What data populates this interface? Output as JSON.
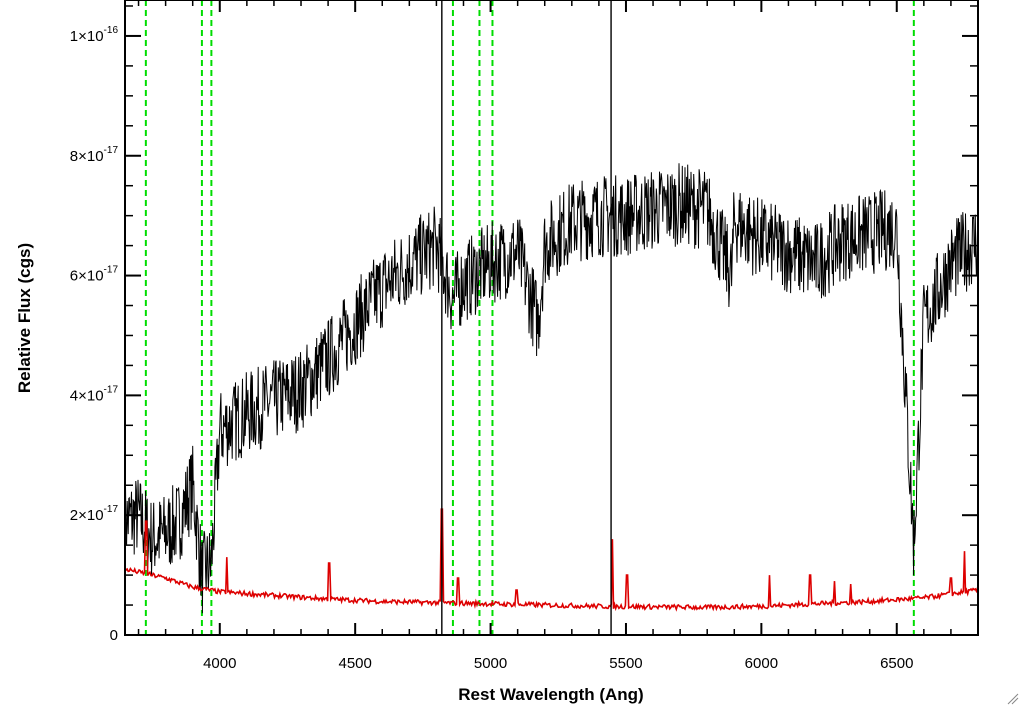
{
  "chart_data": {
    "type": "line",
    "title": "",
    "xlabel": "Rest Wavelength (Ang)",
    "ylabel": "Relative Flux (cgs)",
    "xlim": [
      3650,
      6800
    ],
    "ylim": [
      0,
      1.06e-16
    ],
    "grid": false,
    "legend": "none",
    "x_ticks": [
      {
        "value": 4000,
        "label": "4000"
      },
      {
        "value": 4500,
        "label": "4500"
      },
      {
        "value": 5000,
        "label": "5000"
      },
      {
        "value": 5500,
        "label": "5500"
      },
      {
        "value": 6000,
        "label": "6000"
      },
      {
        "value": 6500,
        "label": "6500"
      }
    ],
    "y_ticks": [
      {
        "value": 0,
        "mant": "0",
        "exp": ""
      },
      {
        "value": 2e-17,
        "mant": "2×10",
        "exp": "-17"
      },
      {
        "value": 4e-17,
        "mant": "4×10",
        "exp": "-17"
      },
      {
        "value": 6e-17,
        "mant": "6×10",
        "exp": "-17"
      },
      {
        "value": 8e-17,
        "mant": "8×10",
        "exp": "-17"
      },
      {
        "value": 1e-16,
        "mant": "1×10",
        "exp": "-16"
      }
    ],
    "vertical_lines": [
      3727,
      3934,
      3969,
      4861,
      4959,
      5007,
      6563
    ],
    "series": [
      {
        "color": "#000000",
        "points": [
          [
            3650,
            1.9e-17
          ],
          [
            3700,
            2e-17
          ],
          [
            3750,
            1.6e-17
          ],
          [
            3800,
            1.7e-17
          ],
          [
            3850,
            1.9e-17
          ],
          [
            3900,
            2.5e-17
          ],
          [
            3934,
            1e-17
          ],
          [
            3969,
            1.2e-17
          ],
          [
            4000,
            3.4e-17
          ],
          [
            4100,
            3.7e-17
          ],
          [
            4200,
            3.9e-17
          ],
          [
            4300,
            4.1e-17
          ],
          [
            4400,
            4.6e-17
          ],
          [
            4500,
            5.2e-17
          ],
          [
            4600,
            5.8e-17
          ],
          [
            4700,
            6.2e-17
          ],
          [
            4800,
            6.5e-17
          ],
          [
            4861,
            5.6e-17
          ],
          [
            4900,
            5.9e-17
          ],
          [
            5000,
            6.2e-17
          ],
          [
            5100,
            6.4e-17
          ],
          [
            5175,
            5.2e-17
          ],
          [
            5200,
            6.5e-17
          ],
          [
            5300,
            6.9e-17
          ],
          [
            5400,
            7e-17
          ],
          [
            5500,
            7e-17
          ],
          [
            5600,
            7.1e-17
          ],
          [
            5700,
            7.2e-17
          ],
          [
            5800,
            7.1e-17
          ],
          [
            5890,
            6e-17
          ],
          [
            5900,
            6.9e-17
          ],
          [
            6000,
            6.6e-17
          ],
          [
            6100,
            6.4e-17
          ],
          [
            6200,
            6.2e-17
          ],
          [
            6300,
            6.6e-17
          ],
          [
            6400,
            6.7e-17
          ],
          [
            6500,
            6.8e-17
          ],
          [
            6563,
            1.5e-17
          ],
          [
            6600,
            5.2e-17
          ],
          [
            6700,
            6.2e-17
          ],
          [
            6800,
            6.6e-17
          ]
        ]
      },
      {
        "color": "#dd0000",
        "points": [
          [
            3650,
            1.1e-17
          ],
          [
            3700,
            1.05e-17
          ],
          [
            3800,
            9.5e-18
          ],
          [
            3900,
            8e-18
          ],
          [
            4000,
            7.2e-18
          ],
          [
            4200,
            6.6e-18
          ],
          [
            4400,
            6e-18
          ],
          [
            4600,
            5.6e-18
          ],
          [
            4800,
            5.4e-18
          ],
          [
            5000,
            5.2e-18
          ],
          [
            5200,
            5e-18
          ],
          [
            5400,
            4.8e-18
          ],
          [
            5600,
            4.7e-18
          ],
          [
            5800,
            4.6e-18
          ],
          [
            6000,
            4.8e-18
          ],
          [
            6200,
            5.2e-18
          ],
          [
            6400,
            5.6e-18
          ],
          [
            6600,
            6.2e-18
          ],
          [
            6800,
            7.5e-18
          ]
        ],
        "spikes": [
          [
            3727,
            1.9e-17
          ],
          [
            4026,
            1.3e-17
          ],
          [
            4405,
            1.2e-17
          ],
          [
            4820,
            2.1e-17
          ],
          [
            4880,
            9.5e-18
          ],
          [
            5095,
            7.5e-18
          ],
          [
            5450,
            1.6e-17
          ],
          [
            5505,
            1e-17
          ],
          [
            6030,
            1e-17
          ],
          [
            6180,
            1e-17
          ],
          [
            6270,
            9e-18
          ],
          [
            6330,
            8.5e-18
          ],
          [
            6700,
            9.5e-18
          ],
          [
            6750,
            1.4e-17
          ]
        ]
      }
    ]
  }
}
